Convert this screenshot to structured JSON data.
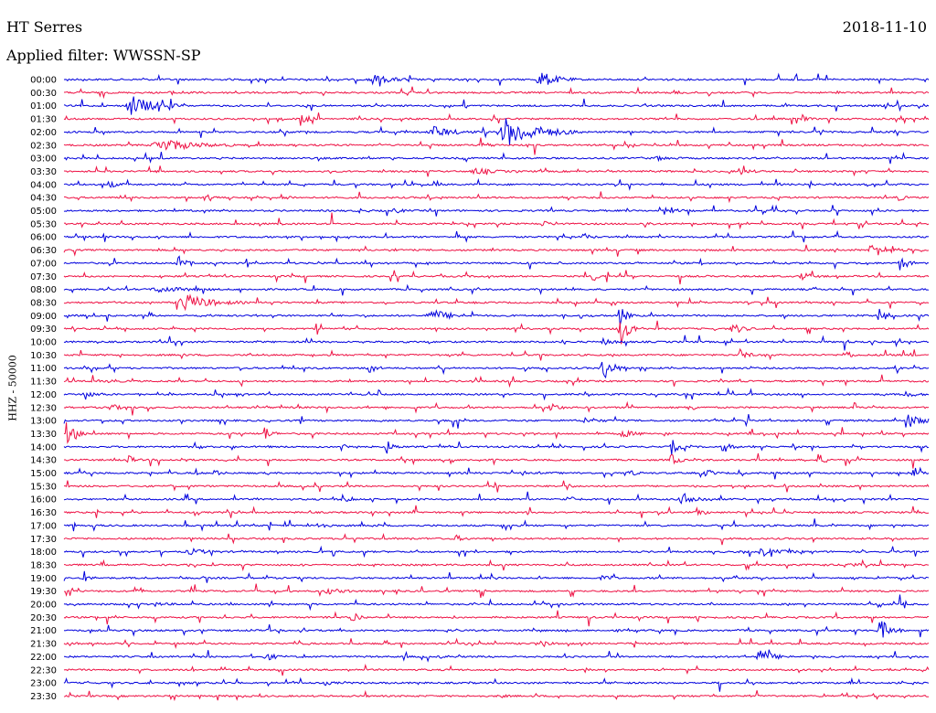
{
  "header": {
    "station": "HT Serres",
    "date": "2018-11-10",
    "filter": "Applied filter: WWSSN-SP"
  },
  "chart_data": {
    "type": "helicorder",
    "ylabel": "HHZ - 50000",
    "colors": {
      "even_trace": "#0000dd",
      "odd_trace": "#ee1144"
    },
    "rows": [
      {
        "label": "00:00",
        "events": [
          {
            "t": 0.35,
            "a": 5,
            "d": 0.06
          },
          {
            "t": 0.545,
            "a": 9,
            "d": 0.05
          }
        ]
      },
      {
        "label": "00:30",
        "events": [
          {
            "t": 0.12,
            "a": 1.5,
            "d": 0.05
          },
          {
            "t": 0.7,
            "a": 1.5,
            "d": 0.04
          }
        ]
      },
      {
        "label": "01:00",
        "events": [
          {
            "t": 0.07,
            "a": 11,
            "d": 0.07
          }
        ]
      },
      {
        "label": "01:30",
        "events": [
          {
            "t": 0.27,
            "a": 13,
            "d": 0.02
          },
          {
            "t": 0.85,
            "a": 3,
            "d": 0.02
          }
        ]
      },
      {
        "label": "02:00",
        "events": [
          {
            "t": 0.42,
            "a": 6,
            "d": 0.06
          },
          {
            "t": 0.5,
            "a": 16,
            "d": 0.1
          }
        ]
      },
      {
        "label": "02:30",
        "events": [
          {
            "t": 0.1,
            "a": 7,
            "d": 0.1
          },
          {
            "t": 0.48,
            "a": 3,
            "d": 0.03
          }
        ]
      },
      {
        "label": "03:00",
        "events": [
          {
            "t": 0.68,
            "a": 2,
            "d": 0.04
          }
        ]
      },
      {
        "label": "03:30",
        "events": [
          {
            "t": 0.47,
            "a": 3,
            "d": 0.05
          },
          {
            "t": 0.78,
            "a": 3,
            "d": 0.03
          }
        ]
      },
      {
        "label": "04:00",
        "events": [
          {
            "t": 0.05,
            "a": 4,
            "d": 0.02
          },
          {
            "t": 0.43,
            "a": 4,
            "d": 0.01
          }
        ]
      },
      {
        "label": "04:30",
        "events": [
          {
            "t": 0.16,
            "a": 4,
            "d": 0.02
          },
          {
            "t": 0.25,
            "a": 4,
            "d": 0.02
          },
          {
            "t": 0.96,
            "a": 5,
            "d": 0.02
          }
        ]
      },
      {
        "label": "05:00",
        "events": [
          {
            "t": 0.38,
            "a": 3,
            "d": 0.02
          },
          {
            "t": 0.7,
            "a": 3,
            "d": 0.02
          }
        ]
      },
      {
        "label": "05:30",
        "events": [
          {
            "t": 0.55,
            "a": 4,
            "d": 0.02
          },
          {
            "t": 0.67,
            "a": 3,
            "d": 0.02
          }
        ]
      },
      {
        "label": "06:00",
        "events": [
          {
            "t": 0.6,
            "a": 3,
            "d": 0.02
          }
        ]
      },
      {
        "label": "06:30",
        "events": [
          {
            "t": 0.93,
            "a": 7,
            "d": 0.05
          }
        ]
      },
      {
        "label": "07:00",
        "events": [
          {
            "t": 0.13,
            "a": 8,
            "d": 0.02
          },
          {
            "t": 0.965,
            "a": 10,
            "d": 0.02
          }
        ]
      },
      {
        "label": "07:30",
        "events": [
          {
            "t": 0.61,
            "a": 7,
            "d": 0.015
          },
          {
            "t": 0.85,
            "a": 4,
            "d": 0.03
          }
        ]
      },
      {
        "label": "08:00",
        "events": [
          {
            "t": 0.1,
            "a": 3,
            "d": 0.08
          }
        ]
      },
      {
        "label": "08:30",
        "events": [
          {
            "t": 0.13,
            "a": 9,
            "d": 0.08
          }
        ]
      },
      {
        "label": "09:00",
        "events": [
          {
            "t": 0.42,
            "a": 6,
            "d": 0.06
          },
          {
            "t": 0.64,
            "a": 12,
            "d": 0.02
          },
          {
            "t": 0.94,
            "a": 10,
            "d": 0.02
          }
        ]
      },
      {
        "label": "09:30",
        "events": [
          {
            "t": 0.64,
            "a": 18,
            "d": 0.03
          },
          {
            "t": 0.77,
            "a": 6,
            "d": 0.03
          }
        ]
      },
      {
        "label": "10:00",
        "events": [
          {
            "t": 0.62,
            "a": 3,
            "d": 0.03
          }
        ]
      },
      {
        "label": "10:30",
        "events": [
          {
            "t": 0.78,
            "a": 7,
            "d": 0.02
          },
          {
            "t": 0.9,
            "a": 5,
            "d": 0.02
          }
        ]
      },
      {
        "label": "11:00",
        "events": [
          {
            "t": 0.35,
            "a": 7,
            "d": 0.02
          },
          {
            "t": 0.62,
            "a": 14,
            "d": 0.03
          },
          {
            "t": 0.96,
            "a": 6,
            "d": 0.01
          }
        ]
      },
      {
        "label": "11:30",
        "events": [
          {
            "t": 0.05,
            "a": 3,
            "d": 0.02
          }
        ]
      },
      {
        "label": "12:00",
        "events": [
          {
            "t": 0.02,
            "a": 3,
            "d": 0.03
          },
          {
            "t": 0.97,
            "a": 3,
            "d": 0.03
          }
        ]
      },
      {
        "label": "12:30",
        "events": [
          {
            "t": 0.05,
            "a": 6,
            "d": 0.02
          },
          {
            "t": 0.56,
            "a": 8,
            "d": 0.02
          },
          {
            "t": 0.72,
            "a": 5,
            "d": 0.02
          }
        ]
      },
      {
        "label": "13:00",
        "events": [
          {
            "t": 0.6,
            "a": 4,
            "d": 0.03
          },
          {
            "t": 0.97,
            "a": 9,
            "d": 0.04
          }
        ]
      },
      {
        "label": "13:30",
        "events": [
          {
            "t": 0.0,
            "a": 10,
            "d": 0.03
          },
          {
            "t": 0.23,
            "a": 8,
            "d": 0.02
          },
          {
            "t": 0.64,
            "a": 4,
            "d": 0.04
          }
        ]
      },
      {
        "label": "14:00",
        "events": [
          {
            "t": 0.32,
            "a": 10,
            "d": 0.02
          },
          {
            "t": 0.37,
            "a": 8,
            "d": 0.02
          },
          {
            "t": 0.7,
            "a": 9,
            "d": 0.02
          },
          {
            "t": 0.76,
            "a": 7,
            "d": 0.02
          }
        ]
      },
      {
        "label": "14:30",
        "events": [
          {
            "t": 0.07,
            "a": 6,
            "d": 0.02
          },
          {
            "t": 0.7,
            "a": 8,
            "d": 0.02
          },
          {
            "t": 0.87,
            "a": 7,
            "d": 0.02
          }
        ]
      },
      {
        "label": "15:00",
        "events": [
          {
            "t": 0.17,
            "a": 4,
            "d": 0.02
          },
          {
            "t": 0.65,
            "a": 4,
            "d": 0.02
          },
          {
            "t": 0.74,
            "a": 5,
            "d": 0.02
          },
          {
            "t": 0.98,
            "a": 4,
            "d": 0.02
          }
        ]
      },
      {
        "label": "15:30",
        "events": [
          {
            "t": 0.58,
            "a": 5,
            "d": 0.01
          }
        ]
      },
      {
        "label": "16:00",
        "events": [
          {
            "t": 0.32,
            "a": 5,
            "d": 0.02
          },
          {
            "t": 0.58,
            "a": 4,
            "d": 0.02
          },
          {
            "t": 0.71,
            "a": 6,
            "d": 0.05
          }
        ]
      },
      {
        "label": "16:30",
        "events": [
          {
            "t": 0.73,
            "a": 5,
            "d": 0.02
          }
        ]
      },
      {
        "label": "17:00",
        "events": [
          {
            "t": 0.29,
            "a": 6,
            "d": 0.02
          }
        ]
      },
      {
        "label": "17:30",
        "events": [
          {
            "t": 0.45,
            "a": 4,
            "d": 0.02
          }
        ]
      },
      {
        "label": "18:00",
        "events": [
          {
            "t": 0.14,
            "a": 3,
            "d": 0.05
          },
          {
            "t": 0.8,
            "a": 3,
            "d": 0.06
          }
        ]
      },
      {
        "label": "18:30",
        "events": [
          {
            "t": 0.9,
            "a": 3,
            "d": 0.03
          }
        ]
      },
      {
        "label": "19:00",
        "events": [
          {
            "t": 0.02,
            "a": 4,
            "d": 0.02
          },
          {
            "t": 0.62,
            "a": 3,
            "d": 0.02
          }
        ]
      },
      {
        "label": "19:30",
        "events": [
          {
            "t": 0.3,
            "a": 3,
            "d": 0.04
          }
        ]
      },
      {
        "label": "20:00",
        "events": [
          {
            "t": 0.1,
            "a": 2,
            "d": 0.03
          }
        ]
      },
      {
        "label": "20:30",
        "events": [
          {
            "t": 0.33,
            "a": 9,
            "d": 0.02
          }
        ]
      },
      {
        "label": "21:00",
        "events": [
          {
            "t": 0.94,
            "a": 13,
            "d": 0.03
          }
        ]
      },
      {
        "label": "21:30",
        "events": [
          {
            "t": 0.55,
            "a": 3,
            "d": 0.02
          }
        ]
      },
      {
        "label": "22:00",
        "events": [
          {
            "t": 0.23,
            "a": 4,
            "d": 0.03
          },
          {
            "t": 0.8,
            "a": 8,
            "d": 0.04
          }
        ]
      },
      {
        "label": "22:30",
        "events": [
          {
            "t": 0.6,
            "a": 2,
            "d": 0.02
          }
        ]
      },
      {
        "label": "23:00",
        "events": [
          {
            "t": 0.3,
            "a": 2,
            "d": 0.02
          }
        ]
      },
      {
        "label": "23:30",
        "events": [
          {
            "t": 0.5,
            "a": 2,
            "d": 0.02
          }
        ]
      }
    ]
  }
}
